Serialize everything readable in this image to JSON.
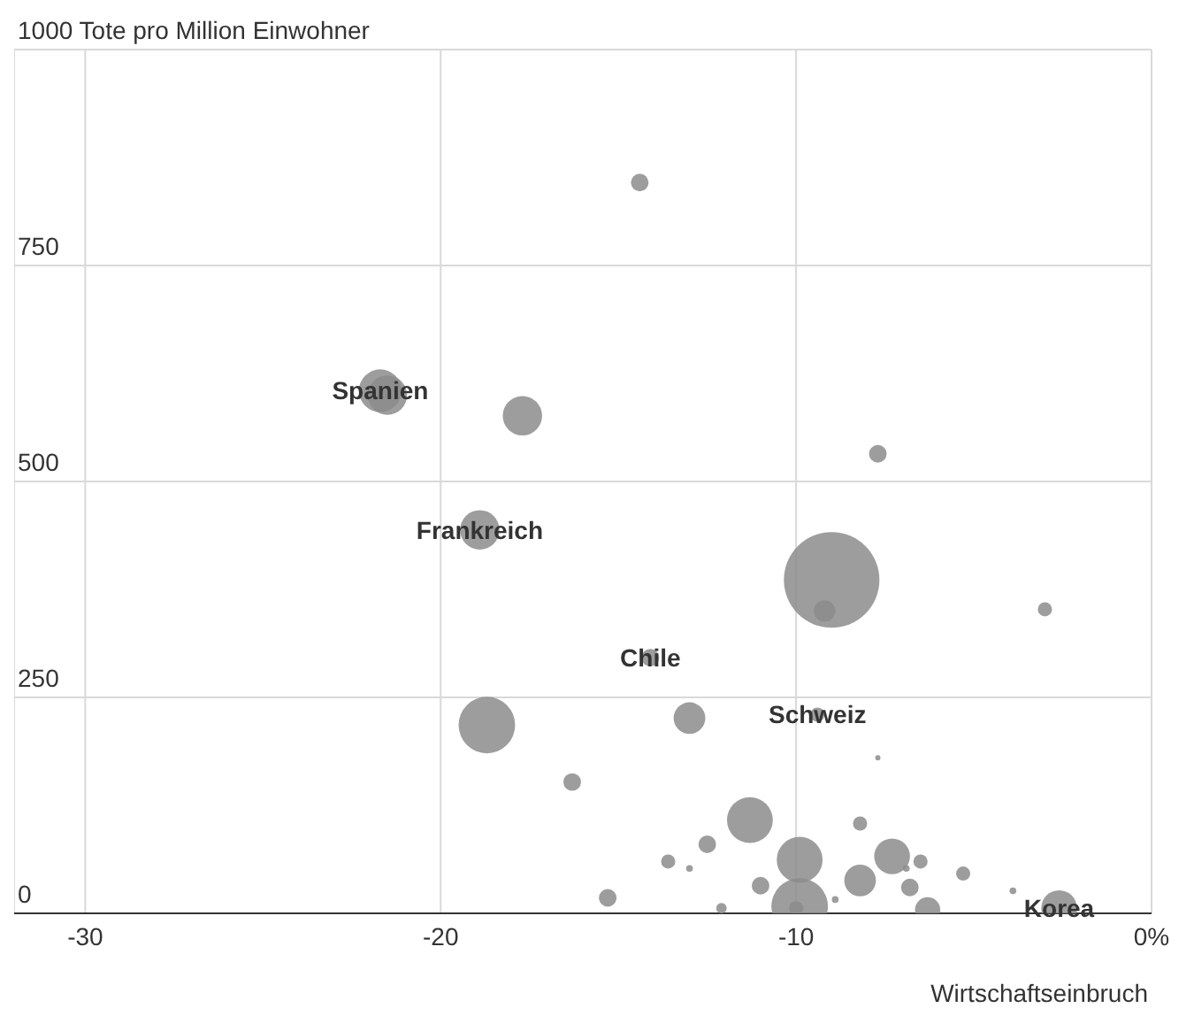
{
  "chart_data": {
    "type": "bubble",
    "xlabel": "Wirtschaftseinbruch",
    "xlim": [
      -32,
      0
    ],
    "xticks": [
      -30,
      -20,
      -10,
      {
        "value": 0,
        "label": "0%"
      }
    ],
    "ylim": [
      0,
      1000
    ],
    "yticks": [
      0,
      250,
      500,
      750,
      {
        "value": 1000,
        "label": "1000 Tote pro Million Einwohner"
      }
    ],
    "grid": true,
    "x": [
      -14.4,
      -21.7,
      -21.5,
      -17.7,
      -18.9,
      -9.0,
      -9.2,
      -7.7,
      -3.0,
      -14.1,
      -18.7,
      -13.0,
      -9.4,
      -7.7,
      -16.3,
      -11.3,
      -12.5,
      -13.6,
      -13.0,
      -9.9,
      -7.3,
      -8.2,
      -6.5,
      -11.0,
      -8.2,
      -6.8,
      -5.3,
      -3.9,
      -9.9,
      -10.0,
      -8.9,
      -6.3,
      -2.6,
      -15.3,
      -12.1,
      -6.9
    ],
    "series": [
      {
        "color": "#8c8c8c",
        "values": [
          846,
          605,
          600,
          576,
          444,
          386,
          350,
          532,
          352,
          296,
          218,
          226,
          230,
          180,
          152,
          108,
          80,
          60,
          52,
          62,
          66,
          104,
          60,
          32,
          38,
          30,
          46,
          26,
          8,
          6,
          16,
          4,
          6,
          18,
          6,
          52
        ],
        "sizes": [
          0.034,
          0.2,
          0.17,
          0.17,
          0.17,
          1,
          0.05,
          0.034,
          0.022,
          0.034,
          0.35,
          0.11,
          0.022,
          0.003,
          0.034,
          0.23,
          0.034,
          0.022,
          0.005,
          0.23,
          0.14,
          0.022,
          0.022,
          0.034,
          0.11,
          0.034,
          0.022,
          0.005,
          0.35,
          0.022,
          0.005,
          0.07,
          0.14,
          0.034,
          0.012,
          0.005
        ]
      }
    ],
    "annotations": [
      {
        "text": "Spanien",
        "x": -21.7,
        "y": 605
      },
      {
        "text": "Frankreich",
        "x": -18.9,
        "y": 444
      },
      {
        "text": "Chile",
        "x": -14.1,
        "y": 296
      },
      {
        "text": "Schweiz",
        "x": -9.4,
        "y": 230
      },
      {
        "text": "Korea",
        "x": -2.6,
        "y": 6
      }
    ]
  }
}
